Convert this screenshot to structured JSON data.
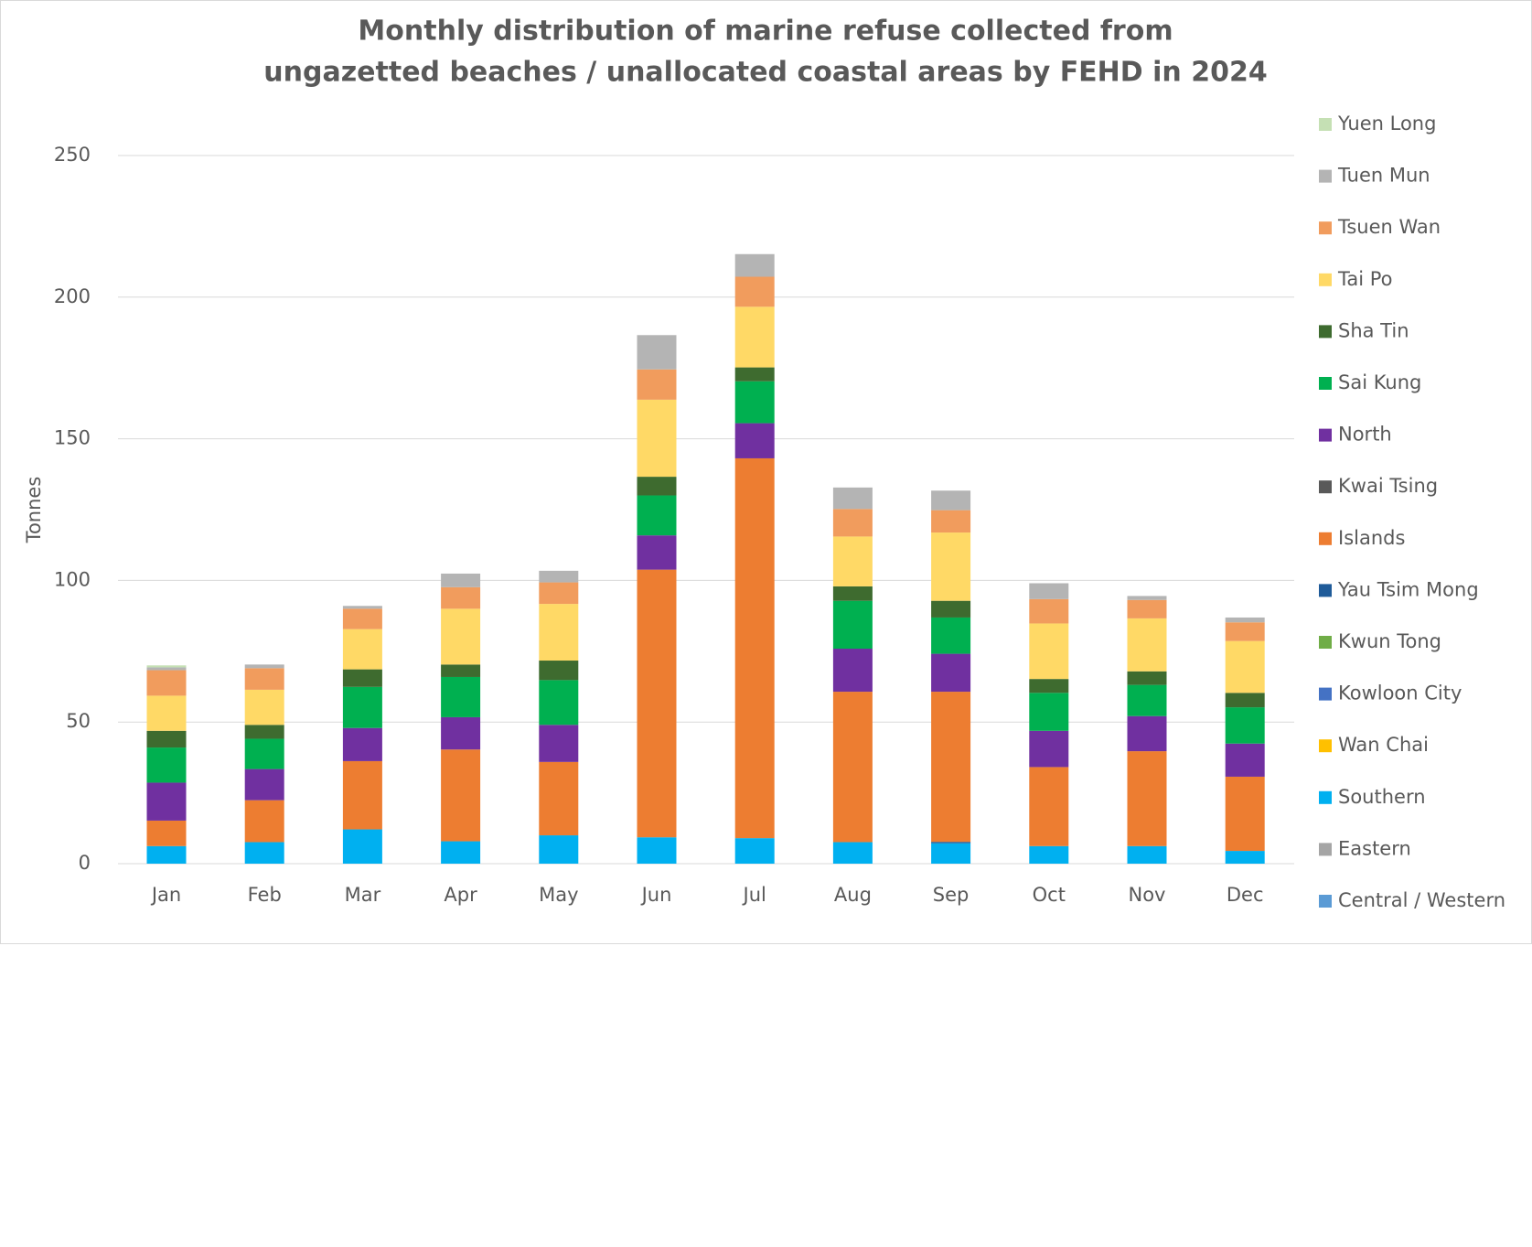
{
  "chart_data": {
    "type": "stacked_bar",
    "title": [
      "Monthly distribution of marine refuse collected from",
      "ungazetted beaches / unallocated coastal areas by FEHD in 2024"
    ],
    "y_label": "Tonnes",
    "categories": [
      "Jan",
      "Feb",
      "Mar",
      "Apr",
      "May",
      "Jun",
      "Jul",
      "Aug",
      "Sep",
      "Oct",
      "Nov",
      "Dec"
    ],
    "ylim": [
      0,
      250
    ],
    "yticks": [
      0,
      50,
      100,
      150,
      200,
      250
    ],
    "grid": true,
    "legend": "right",
    "series": [
      {
        "name": "Central / Western",
        "color": "#5b9bd5",
        "values": [
          0,
          0,
          0,
          0,
          0,
          0,
          0,
          0,
          0,
          0,
          0,
          0
        ]
      },
      {
        "name": "Eastern",
        "color": "#a5a5a5",
        "values": [
          0,
          0,
          0,
          0,
          0,
          0,
          0,
          0,
          0,
          0,
          0,
          0
        ]
      },
      {
        "name": "Southern",
        "color": "#00b0f0",
        "values": [
          6.2,
          7.6,
          12.1,
          7.9,
          10,
          9.3,
          9,
          7.6,
          7.2,
          6.2,
          6.2,
          4.5
        ]
      },
      {
        "name": "Wan Chai",
        "color": "#ffc000",
        "values": [
          0,
          0,
          0,
          0,
          0,
          0,
          0,
          0,
          0,
          0,
          0,
          0
        ]
      },
      {
        "name": "Kowloon City",
        "color": "#4472c4",
        "values": [
          0,
          0,
          0,
          0,
          0,
          0,
          0,
          0,
          0,
          0,
          0,
          0
        ]
      },
      {
        "name": "Kwun Tong",
        "color": "#70ad47",
        "values": [
          0,
          0,
          0,
          0,
          0,
          0,
          0,
          0,
          0,
          0,
          0,
          0
        ]
      },
      {
        "name": "Yau Tsim Mong",
        "color": "#1f5b99",
        "values": [
          0,
          0,
          0,
          0,
          0,
          0,
          0,
          0,
          0.5,
          0,
          0,
          0
        ]
      },
      {
        "name": "Islands",
        "color": "#ed7d31",
        "values": [
          9,
          14.8,
          24.1,
          32.4,
          25.9,
          94.5,
          134.1,
          53.1,
          53,
          27.9,
          33.5,
          26.2
        ]
      },
      {
        "name": "Kwai Tsing",
        "color": "#595959",
        "values": [
          0,
          0,
          0,
          0,
          0,
          0,
          0,
          0,
          0,
          0,
          0,
          0
        ]
      },
      {
        "name": "North",
        "color": "#7030a0",
        "values": [
          13.4,
          11,
          11.7,
          11.4,
          13.1,
          12.1,
          12.4,
          15.2,
          13.4,
          12.8,
          12.4,
          11.7
        ]
      },
      {
        "name": "Sai Kung",
        "color": "#00b050",
        "values": [
          12.4,
          10.7,
          14.5,
          14.2,
          15.8,
          14.1,
          14.8,
          16.9,
          12.8,
          13.4,
          11,
          12.8
        ]
      },
      {
        "name": "Sha Tin",
        "color": "#3e6b2f",
        "values": [
          5.9,
          4.9,
          6.2,
          4.4,
          6.9,
          6.6,
          4.9,
          5.1,
          5.9,
          4.9,
          4.8,
          5.1
        ]
      },
      {
        "name": "Tai Po",
        "color": "#ffd966",
        "values": [
          12.4,
          12.4,
          14.2,
          19.7,
          20,
          27.2,
          21.4,
          17.6,
          24.1,
          19.6,
          18.7,
          18.3
        ]
      },
      {
        "name": "Tsuen Wan",
        "color": "#f19c5d",
        "values": [
          9,
          7.6,
          7.2,
          7.6,
          7.6,
          10.7,
          10.6,
          9.7,
          7.9,
          8.6,
          6.5,
          6.6
        ]
      },
      {
        "name": "Tuen Mun",
        "color": "#b4b4b4",
        "values": [
          1,
          1.3,
          1,
          4.8,
          4.1,
          12.1,
          8,
          7.6,
          6.9,
          5.6,
          1.4,
          1.7
        ]
      },
      {
        "name": "Yuen Long",
        "color": "#c5e0b4",
        "values": [
          0.7,
          0,
          0,
          0,
          0,
          0,
          0,
          0,
          0,
          0,
          0,
          0
        ]
      }
    ]
  }
}
